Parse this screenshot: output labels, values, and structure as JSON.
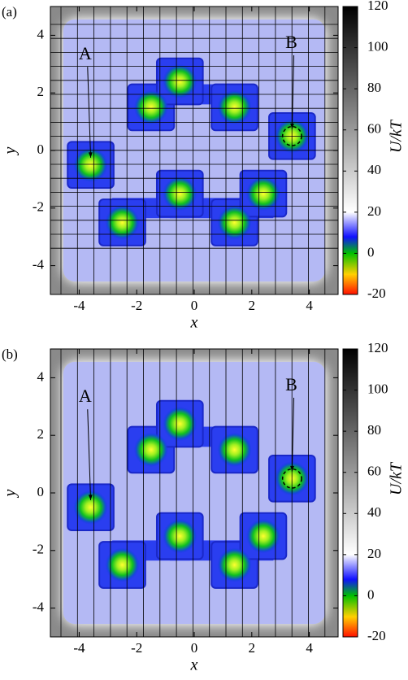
{
  "chart_data": [
    {
      "type": "heatmap",
      "panel_label": "(a)",
      "xlabel": "x",
      "ylabel": "y",
      "xlim": [
        -5,
        5
      ],
      "ylim": [
        -5,
        5
      ],
      "xticks": [
        -4,
        -2,
        0,
        2,
        4
      ],
      "yticks": [
        -4,
        -2,
        0,
        2,
        4
      ],
      "grid": "both",
      "colorbar": {
        "label": "U/kT",
        "lim": [
          -20,
          120
        ],
        "ticks": [
          -20,
          0,
          20,
          40,
          60,
          80,
          100,
          120
        ]
      },
      "wells": {
        "x": [
          -3.6,
          -2.5,
          -1.5,
          -0.5,
          1.4,
          3.4,
          -0.5,
          1.4,
          2.4
        ],
        "y": [
          -0.5,
          -2.5,
          1.5,
          2.4,
          1.5,
          0.5,
          -1.5,
          -2.5,
          -1.5
        ]
      },
      "annotations": [
        "A",
        "B"
      ]
    },
    {
      "type": "heatmap",
      "panel_label": "(b)",
      "xlabel": "x",
      "ylabel": "y",
      "xlim": [
        -5,
        5
      ],
      "ylim": [
        -5,
        5
      ],
      "xticks": [
        -4,
        -2,
        0,
        2,
        4
      ],
      "yticks": [
        -4,
        -2,
        0,
        2,
        4
      ],
      "grid": "x",
      "colorbar": {
        "label": "U/kT",
        "lim": [
          -20,
          120
        ],
        "ticks": [
          -20,
          0,
          20,
          40,
          60,
          80,
          100,
          120
        ]
      },
      "wells": {
        "x": [
          -3.6,
          -2.5,
          -1.5,
          -0.5,
          1.4,
          3.4,
          -0.5,
          1.4,
          2.4
        ],
        "y": [
          -0.5,
          -2.5,
          1.5,
          2.4,
          1.5,
          0.5,
          -1.5,
          -2.5,
          -1.5
        ]
      },
      "annotations": [
        "A",
        "B"
      ]
    }
  ]
}
